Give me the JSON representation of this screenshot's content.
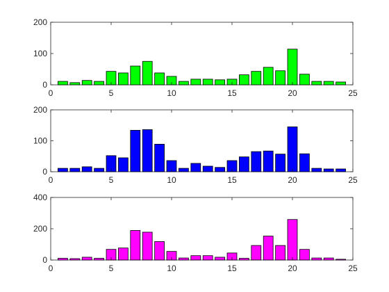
{
  "chart_data": [
    {
      "type": "bar",
      "x": [
        1,
        2,
        3,
        4,
        5,
        6,
        7,
        8,
        9,
        10,
        11,
        12,
        13,
        14,
        15,
        16,
        17,
        18,
        19,
        20,
        21,
        22,
        23,
        24
      ],
      "values": [
        11,
        7,
        14,
        11,
        43,
        38,
        60,
        75,
        38,
        27,
        11,
        18,
        18,
        16,
        18,
        32,
        43,
        56,
        45,
        114,
        34,
        11,
        11,
        9
      ],
      "color": "#00ff00",
      "title": "",
      "xlabel": "",
      "ylabel": "",
      "xlim": [
        0,
        25
      ],
      "ylim": [
        0,
        200
      ],
      "xticks": [
        0,
        5,
        10,
        15,
        20,
        25
      ],
      "yticks": [
        0,
        100,
        200
      ],
      "xtick_labels": [
        "0",
        "5",
        "10",
        "15",
        "20",
        "25"
      ],
      "ytick_labels": [
        "0",
        "100",
        "200"
      ],
      "grid": false
    },
    {
      "type": "bar",
      "x": [
        1,
        2,
        3,
        4,
        5,
        6,
        7,
        8,
        9,
        10,
        11,
        12,
        13,
        14,
        15,
        16,
        17,
        18,
        19,
        20,
        21,
        22,
        23,
        24
      ],
      "values": [
        11,
        11,
        16,
        11,
        52,
        45,
        134,
        136,
        89,
        36,
        11,
        27,
        18,
        14,
        36,
        48,
        65,
        67,
        57,
        145,
        58,
        11,
        9,
        9
      ],
      "color": "#0000ff",
      "title": "",
      "xlabel": "",
      "ylabel": "",
      "xlim": [
        0,
        25
      ],
      "ylim": [
        0,
        200
      ],
      "xticks": [
        0,
        5,
        10,
        15,
        20,
        25
      ],
      "yticks": [
        0,
        100,
        200
      ],
      "xtick_labels": [
        "0",
        "5",
        "10",
        "15",
        "20",
        "25"
      ],
      "ytick_labels": [
        "0",
        "100",
        "200"
      ],
      "grid": false
    },
    {
      "type": "bar",
      "x": [
        1,
        2,
        3,
        4,
        5,
        6,
        7,
        8,
        9,
        10,
        11,
        12,
        13,
        14,
        15,
        16,
        17,
        18,
        19,
        20,
        21,
        22,
        23,
        24
      ],
      "values": [
        11,
        9,
        18,
        11,
        68,
        77,
        189,
        178,
        118,
        55,
        13,
        28,
        28,
        18,
        45,
        11,
        93,
        153,
        93,
        259,
        68,
        13,
        13,
        5
      ],
      "color": "#ff00ff",
      "title": "",
      "xlabel": "",
      "ylabel": "",
      "xlim": [
        0,
        25
      ],
      "ylim": [
        0,
        400
      ],
      "xticks": [
        0,
        5,
        10,
        15,
        20,
        25
      ],
      "yticks": [
        0,
        200,
        400
      ],
      "xtick_labels": [
        "0",
        "5",
        "10",
        "15",
        "20",
        "25"
      ],
      "ytick_labels": [
        "0",
        "200",
        "400"
      ],
      "grid": false
    }
  ]
}
